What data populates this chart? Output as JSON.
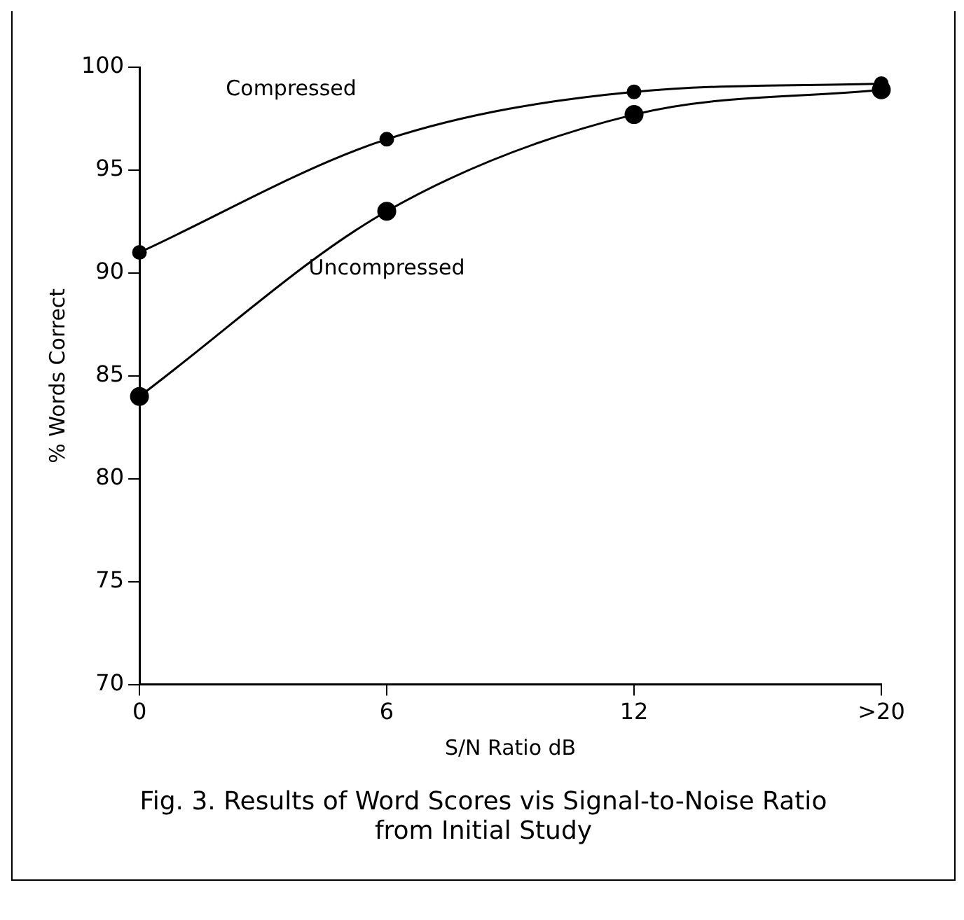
{
  "chart_data": {
    "type": "line",
    "xlabel": "S/N Ratio dB",
    "ylabel": "% Words Correct",
    "categories": [
      "0",
      "6",
      "12",
      ">20"
    ],
    "series": [
      {
        "name": "Compressed",
        "color": "#000000",
        "values": [
          91,
          96.5,
          98.8,
          99.2
        ]
      },
      {
        "name": "Uncompressed",
        "color": "#000000",
        "values": [
          84,
          93,
          97.7,
          98.9
        ]
      }
    ],
    "ylim": [
      70,
      100
    ],
    "yticks": [
      70,
      75,
      80,
      85,
      90,
      95,
      100
    ],
    "grid": false,
    "legend": false,
    "marker": "circle",
    "line_style": "solid",
    "annotations": [
      "Fig. 3. Results of Word Scores vis Signal-to-Noise Ratio from Initial Study"
    ]
  }
}
